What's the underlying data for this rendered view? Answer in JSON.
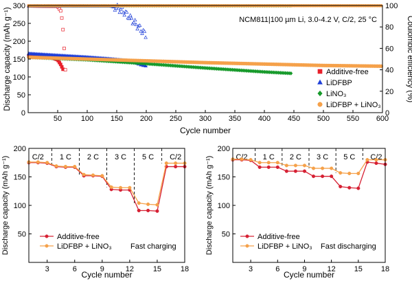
{
  "chart_data": [
    {
      "id": "top",
      "type": "scatter",
      "xlabel": "Cycle number",
      "ylabel": "Discharge capacity (mAh g⁻¹)",
      "ylabel_right": "Coulombic efficiency (%)",
      "xlim": [
        0,
        600
      ],
      "ylim": [
        0,
        300
      ],
      "ylim_right": [
        0,
        100
      ],
      "xticks": [
        "50",
        "100",
        "150",
        "200",
        "250",
        "300",
        "350",
        "400",
        "450",
        "500",
        "550",
        "600"
      ],
      "yticks": [
        "0",
        "50",
        "100",
        "150",
        "200",
        "250",
        "300"
      ],
      "yticks_right": [
        "0",
        "20",
        "40",
        "60",
        "80",
        "100"
      ],
      "annotation": "NCM811|100 µm Li, 3.0-4.2 V, C/2, 25 °C",
      "legend_position": "right-center",
      "series": [
        {
          "name": "Additive-free",
          "marker": "square",
          "color": "#e8202a",
          "capacity": {
            "x": [
              1,
              20,
              40,
              50,
              55,
              60
            ],
            "y": [
              160,
              158,
              154,
              148,
              135,
              118
            ]
          },
          "efficiency": {
            "x": [
              1,
              50,
              55,
              58,
              60,
              62,
              64
            ],
            "y": [
              99.5,
              99.2,
              95,
              85,
              70,
              50,
              30
            ]
          }
        },
        {
          "name": "LiDFBP",
          "marker": "triangle",
          "color": "#1f3fd8",
          "capacity": {
            "x": [
              1,
              50,
              100,
              140,
              170,
              185,
              200
            ],
            "y": [
              165,
              160,
              155,
              150,
              145,
              138,
              132
            ]
          },
          "efficiency": {
            "x": [
              1,
              140,
              150,
              160,
              170,
              180,
              190,
              200
            ],
            "y": [
              99.5,
              99.3,
              98,
              95,
              90,
              84,
              78,
              72
            ]
          }
        },
        {
          "name": "LiNO₃",
          "marker": "diamond",
          "color": "#179a2b",
          "capacity": {
            "x": [
              1,
              100,
              200,
              300,
              400,
              445
            ],
            "y": [
              155,
              148,
              137,
              125,
              114,
              110
            ]
          },
          "efficiency": {
            "x": [
              1,
              445
            ],
            "y": [
              99.7,
              99.7
            ]
          }
        },
        {
          "name": "LiDFBP + LiNO₃",
          "marker": "circle",
          "color": "#f5a14a",
          "capacity": {
            "x": [
              1,
              100,
              200,
              300,
              400,
              500,
              600
            ],
            "y": [
              155,
              150,
              145,
              140,
              136,
              132,
              130
            ]
          },
          "efficiency": {
            "x": [
              1,
              600
            ],
            "y": [
              99.8,
              99.8
            ]
          }
        }
      ]
    },
    {
      "id": "bottom_left",
      "type": "line",
      "xlabel": "Cycle number",
      "ylabel": "Discharge capacity (mAh g⁻¹)",
      "xlim": [
        1,
        18
      ],
      "ylim": [
        0,
        200
      ],
      "xticks": [
        "3",
        "6",
        "9",
        "12",
        "15",
        "18"
      ],
      "yticks": [
        "50",
        "100",
        "150",
        "200"
      ],
      "rate_labels": [
        "C/2",
        "1 C",
        "2 C",
        "3 C",
        "5 C",
        "C/2"
      ],
      "annotation": "Fast charging",
      "legend_position": "bottom-left",
      "series": [
        {
          "name": "Additive-free",
          "color": "#d62033",
          "x": [
            1,
            2,
            3,
            4,
            5,
            6,
            7,
            8,
            9,
            10,
            11,
            12,
            13,
            14,
            15,
            16,
            17,
            18
          ],
          "values": [
            175,
            175,
            174,
            168,
            167,
            167,
            152,
            152,
            151,
            128,
            127,
            127,
            91,
            91,
            90,
            168,
            168,
            168
          ]
        },
        {
          "name": "LiDFBP + LiNO₃",
          "color": "#f5a14a",
          "x": [
            1,
            2,
            3,
            4,
            5,
            6,
            7,
            8,
            9,
            10,
            11,
            12,
            13,
            14,
            15,
            16,
            17,
            18
          ],
          "values": [
            176,
            176,
            175,
            169,
            168,
            168,
            154,
            153,
            152,
            132,
            131,
            131,
            104,
            102,
            101,
            174,
            174,
            174
          ]
        }
      ]
    },
    {
      "id": "bottom_right",
      "type": "line",
      "xlabel": "Cycle number",
      "ylabel": "Discharge capacity (mAh g⁻¹)",
      "xlim": [
        1,
        18
      ],
      "ylim": [
        0,
        200
      ],
      "xticks": [
        "3",
        "6",
        "9",
        "12",
        "15",
        "18"
      ],
      "yticks": [
        "50",
        "100",
        "150",
        "200"
      ],
      "rate_labels": [
        "C/2",
        "1 C",
        "2 C",
        "3 C",
        "5 C",
        "C/2"
      ],
      "annotation": "Fast discharging",
      "legend_position": "bottom-left",
      "series": [
        {
          "name": "Additive-free",
          "color": "#d62033",
          "x": [
            1,
            2,
            3,
            4,
            5,
            6,
            7,
            8,
            9,
            10,
            11,
            12,
            13,
            14,
            15,
            16,
            17,
            18
          ],
          "values": [
            180,
            180,
            179,
            167,
            167,
            167,
            160,
            160,
            160,
            151,
            151,
            151,
            133,
            131,
            130,
            176,
            174,
            172
          ]
        },
        {
          "name": "LiDFBP + LiNO₃",
          "color": "#f5a14a",
          "x": [
            1,
            2,
            3,
            4,
            5,
            6,
            7,
            8,
            9,
            10,
            11,
            12,
            13,
            14,
            15,
            16,
            17,
            18
          ],
          "values": [
            181,
            181,
            180,
            175,
            175,
            175,
            170,
            170,
            170,
            165,
            165,
            165,
            157,
            156,
            156,
            180,
            180,
            180
          ]
        }
      ]
    }
  ]
}
